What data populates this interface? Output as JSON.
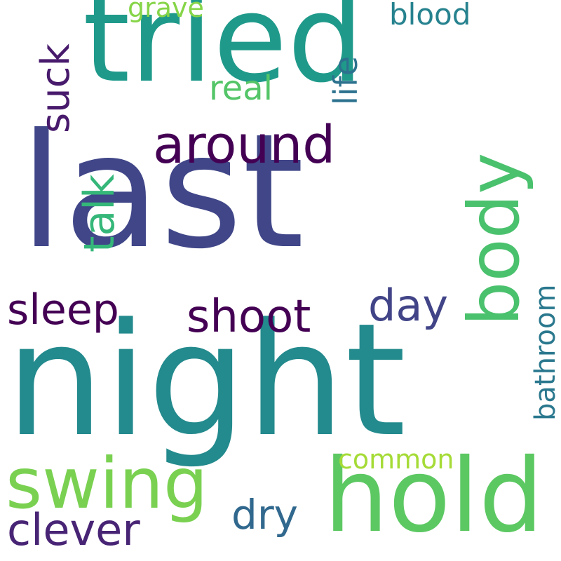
{
  "words": [
    {
      "text": "night",
      "color": "#238a8d",
      "vertical": false
    },
    {
      "text": "last",
      "color": "#404688",
      "vertical": false
    },
    {
      "text": "tried",
      "color": "#1f9a8a",
      "vertical": false
    },
    {
      "text": "hold",
      "color": "#5cc862",
      "vertical": false
    },
    {
      "text": "swing",
      "color": "#7ad151",
      "vertical": false
    },
    {
      "text": "body",
      "color": "#4ac16d",
      "vertical": true
    },
    {
      "text": "around",
      "color": "#440154",
      "vertical": false
    },
    {
      "text": "shoot",
      "color": "#440154",
      "vertical": false
    },
    {
      "text": "sleep",
      "color": "#440154",
      "vertical": false
    },
    {
      "text": "clever",
      "color": "#482475",
      "vertical": false
    },
    {
      "text": "day",
      "color": "#414487",
      "vertical": false
    },
    {
      "text": "dry",
      "color": "#31688e",
      "vertical": false
    },
    {
      "text": "talk",
      "color": "#35b779",
      "vertical": true
    },
    {
      "text": "suck",
      "color": "#481a6c",
      "vertical": true
    },
    {
      "text": "life",
      "color": "#2c728e",
      "vertical": true
    },
    {
      "text": "real",
      "color": "#54c568",
      "vertical": false
    },
    {
      "text": "blood",
      "color": "#26828e",
      "vertical": false
    },
    {
      "text": "bathroom",
      "color": "#2a788e",
      "vertical": true
    },
    {
      "text": "common",
      "color": "#a5db36",
      "vertical": false
    },
    {
      "text": "grave",
      "color": "#86d549",
      "vertical": false
    }
  ]
}
